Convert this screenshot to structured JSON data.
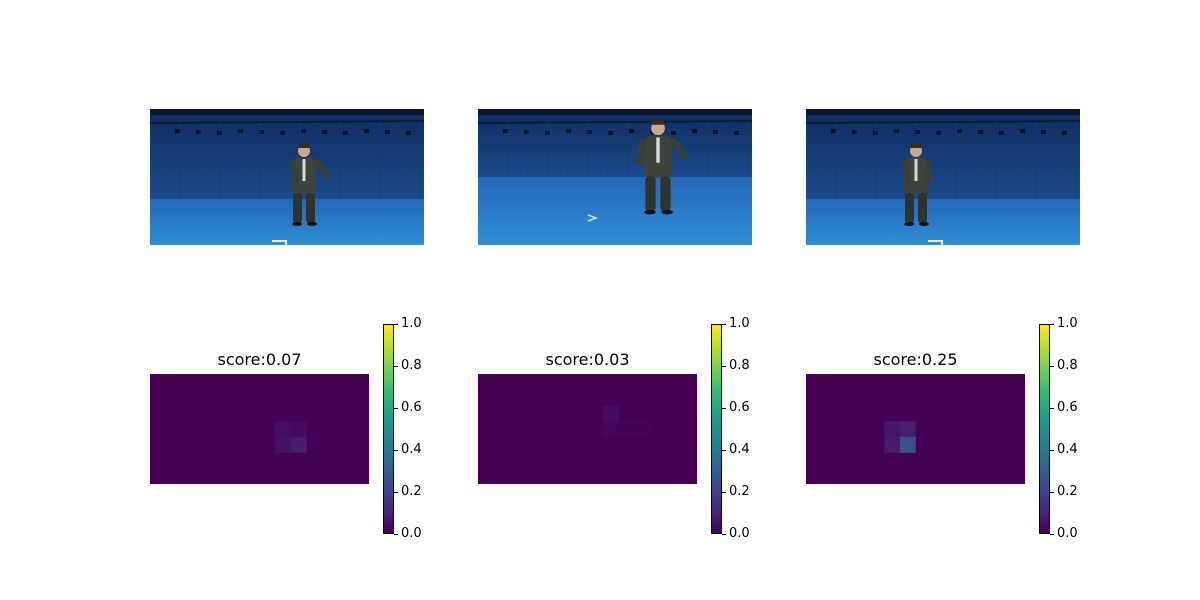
{
  "chart_data": [
    {
      "type": "heatmap",
      "title": "score:0.07",
      "grid": {
        "rows": 7,
        "cols": 14
      },
      "cells": [
        {
          "r": 3,
          "c": 8,
          "v": 0.04
        },
        {
          "r": 3,
          "c": 9,
          "v": 0.03
        },
        {
          "r": 4,
          "c": 8,
          "v": 0.05
        },
        {
          "r": 4,
          "c": 9,
          "v": 0.07
        }
      ],
      "colorbar": {
        "min": 0.0,
        "max": 1.0,
        "ticks": [
          "0.0",
          "0.2",
          "0.4",
          "0.6",
          "0.8",
          "1.0"
        ]
      }
    },
    {
      "type": "heatmap",
      "title": "score:0.03",
      "grid": {
        "rows": 7,
        "cols": 14
      },
      "cells": [
        {
          "r": 2,
          "c": 8,
          "v": 0.03
        },
        {
          "r": 3,
          "c": 8,
          "v": 0.015
        },
        {
          "r": 3,
          "c": 9,
          "v": 0.01
        },
        {
          "r": 3,
          "c": 10,
          "v": 0.01
        }
      ],
      "colorbar": {
        "min": 0.0,
        "max": 1.0,
        "ticks": [
          "0.0",
          "0.2",
          "0.4",
          "0.6",
          "0.8",
          "1.0"
        ]
      }
    },
    {
      "type": "heatmap",
      "title": "score:0.25",
      "grid": {
        "rows": 7,
        "cols": 14
      },
      "cells": [
        {
          "r": 3,
          "c": 5,
          "v": 0.06
        },
        {
          "r": 3,
          "c": 6,
          "v": 0.08
        },
        {
          "r": 4,
          "c": 5,
          "v": 0.07
        },
        {
          "r": 4,
          "c": 6,
          "v": 0.25
        }
      ],
      "colorbar": {
        "min": 0.0,
        "max": 1.0,
        "ticks": [
          "0.0",
          "0.2",
          "0.4",
          "0.6",
          "0.8",
          "1.0"
        ]
      }
    }
  ],
  "colors": {
    "viridis_low": "#440154",
    "viridis_high": "#fde725",
    "studio_wall": "#1d4a8c",
    "studio_floor": "#2f8ed6"
  }
}
